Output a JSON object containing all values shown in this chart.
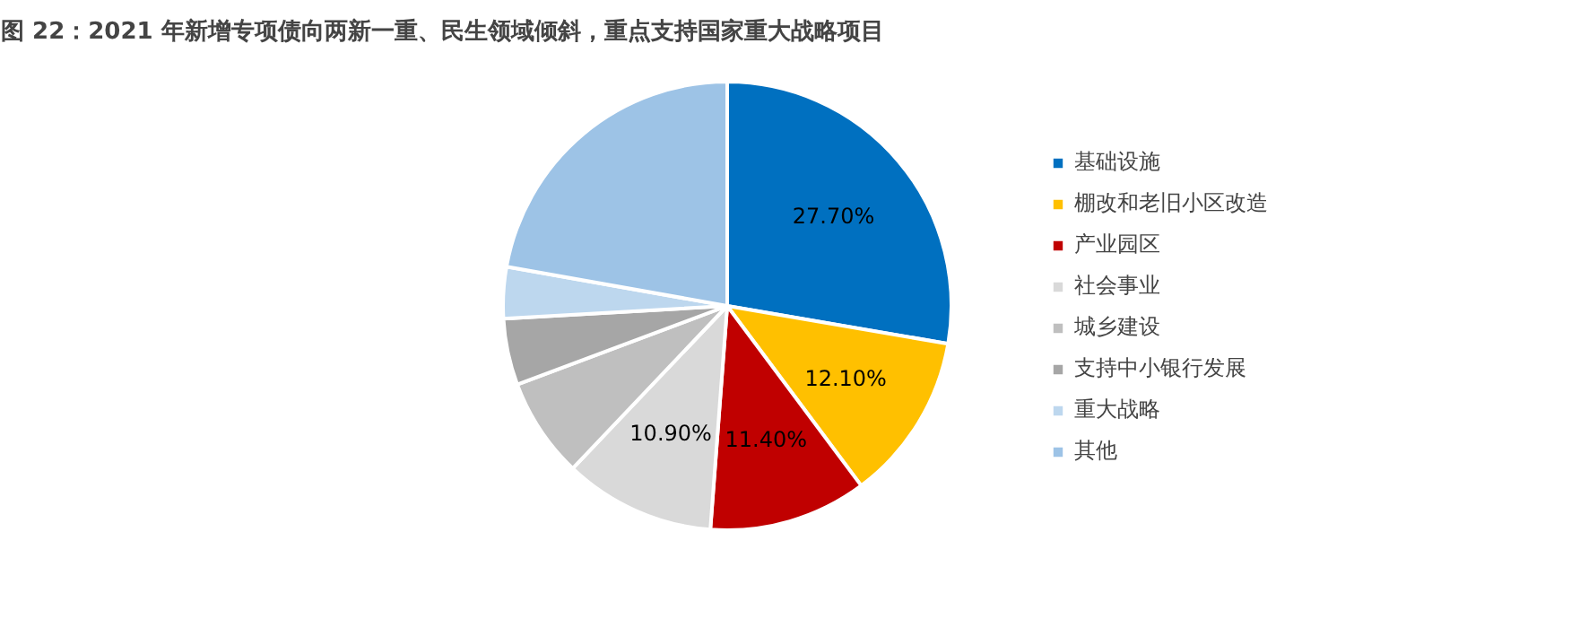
{
  "chart_data": {
    "type": "pie",
    "title": "图 22：2021 年新增专项债向两新一重、民生领域倾斜，重点支持国家重大战略项目",
    "categories": [
      "基础设施",
      "棚改和老旧小区改造",
      "产业园区",
      "社会事业",
      "城乡建设",
      "支持中小银行发展",
      "重大战略",
      "其他"
    ],
    "values": [
      27.7,
      12.1,
      11.4,
      10.9,
      7.2,
      4.8,
      3.7,
      22.2
    ],
    "colors": [
      "#0070c0",
      "#ffc000",
      "#c00000",
      "#d9d9d9",
      "#bfbfbf",
      "#a6a6a6",
      "#bdd7ee",
      "#9dc3e6"
    ],
    "value_labels": [
      "27.70%",
      "12.10%",
      "11.40%",
      "10.90%",
      null,
      null,
      null,
      null
    ],
    "legend": "right"
  }
}
